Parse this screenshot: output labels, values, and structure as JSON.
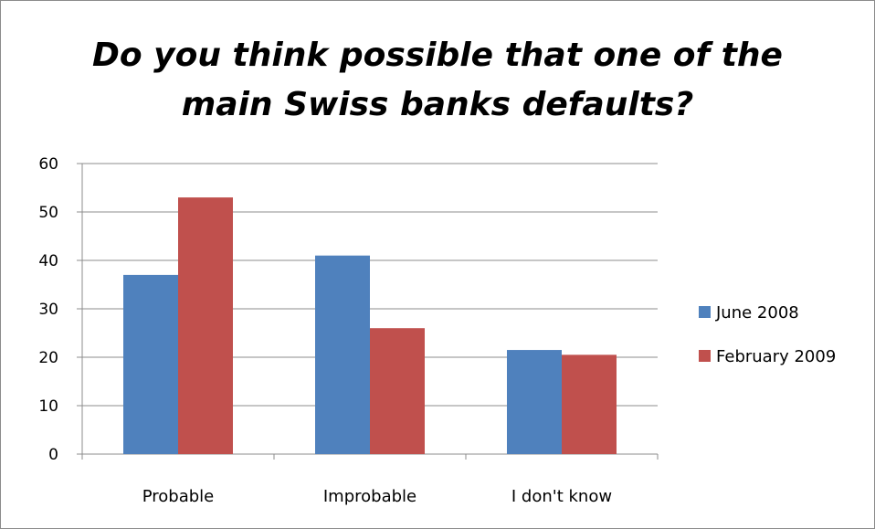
{
  "chart_data": {
    "type": "bar",
    "title_line1": "Do you think possible that one of the",
    "title_line2": "main Swiss banks defaults?",
    "categories": [
      "Probable",
      "Improbable",
      "I don't know"
    ],
    "series": [
      {
        "name": "June 2008",
        "values": [
          37,
          41,
          21.5
        ],
        "color": "#4f81bd"
      },
      {
        "name": "February 2009",
        "values": [
          53,
          26,
          20.5
        ],
        "color": "#c0504d"
      }
    ],
    "ylim": [
      0,
      60
    ],
    "yticks": [
      0,
      10,
      20,
      30,
      40,
      50,
      60
    ],
    "grid": true,
    "legend_position": "right"
  }
}
